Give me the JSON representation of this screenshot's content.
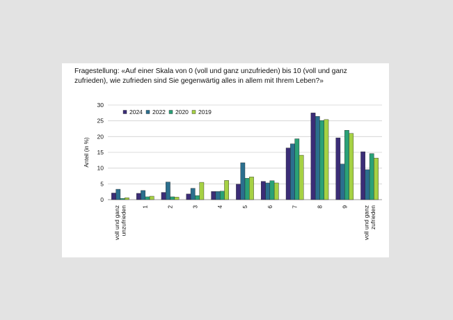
{
  "question": "Fragestellung: «Auf einer Skala von 0 (voll und ganz unzufrieden) bis 10 (voll und ganz zufrieden), wie zufrieden sind Sie gegenwärtig alles in allem mit Ihrem Leben?»",
  "chart_data": {
    "type": "bar",
    "ylabel": "Anteil (in %)",
    "ylim": [
      0,
      30
    ],
    "yticks": [
      0,
      5,
      10,
      15,
      20,
      25,
      30
    ],
    "grid": true,
    "legend_position": "top-left",
    "categories": [
      [
        "voll und ganz",
        "unzufrieden"
      ],
      [
        "1"
      ],
      [
        "2"
      ],
      [
        "3"
      ],
      [
        "4"
      ],
      [
        "5"
      ],
      [
        "6"
      ],
      [
        "7"
      ],
      [
        "8"
      ],
      [
        "9"
      ],
      [
        "voll und ganz",
        "zufrieden"
      ]
    ],
    "series": [
      {
        "name": "2024",
        "color": "#3b2d77",
        "values": [
          2.1,
          2.0,
          2.3,
          1.8,
          2.6,
          4.9,
          5.8,
          16.4,
          27.5,
          19.6,
          15.2
        ]
      },
      {
        "name": "2022",
        "color": "#2b6f8e",
        "values": [
          3.3,
          2.9,
          5.6,
          3.6,
          2.6,
          11.7,
          5.3,
          17.7,
          26.4,
          11.3,
          9.5
        ]
      },
      {
        "name": "2020",
        "color": "#2aa177",
        "values": [
          0.4,
          0.9,
          0.9,
          1.3,
          2.7,
          6.8,
          6.0,
          19.3,
          25.1,
          22.0,
          14.6
        ]
      },
      {
        "name": "2019",
        "color": "#a6d144",
        "values": [
          0.6,
          1.1,
          0.8,
          5.5,
          6.1,
          7.2,
          5.3,
          14.1,
          25.4,
          21.0,
          13.2
        ]
      }
    ]
  }
}
